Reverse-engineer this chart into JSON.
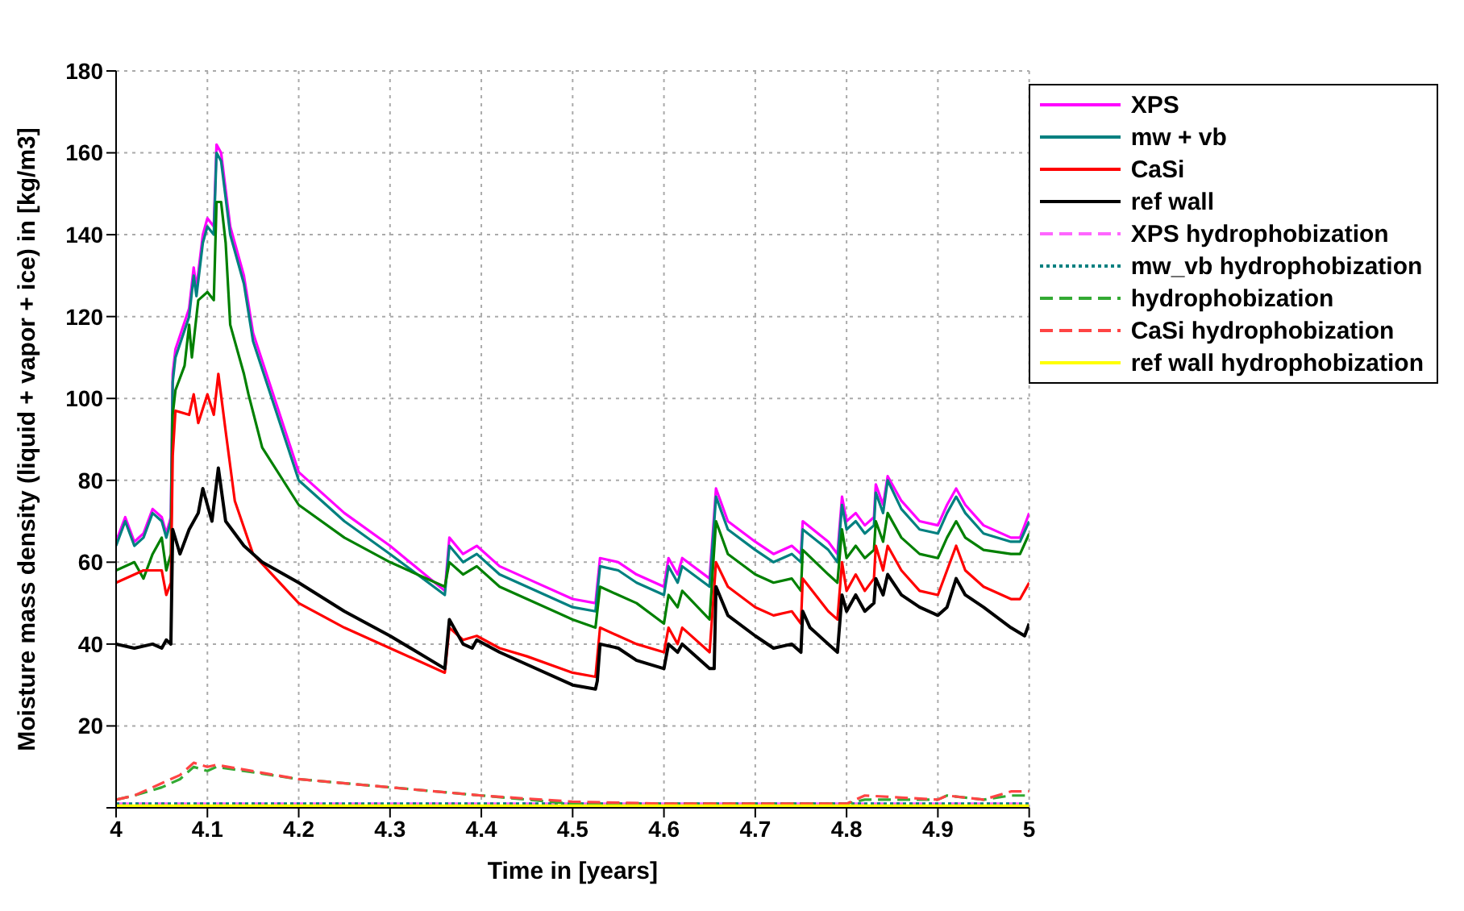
{
  "chart_data": {
    "type": "line",
    "xlabel": "Time in [years]",
    "ylabel": "Moisture mass density (liquid + vapor + ice) in [kg/m3]",
    "xlim": [
      4,
      5
    ],
    "xticks": [
      4,
      4.1,
      4.2,
      4.3,
      4.4,
      4.5,
      4.6,
      4.7,
      4.8,
      4.9,
      5
    ],
    "ylim": [
      0,
      180
    ],
    "yticks": [
      {
        "value": 0,
        "label": null
      },
      20,
      40,
      60,
      80,
      100,
      120,
      140,
      160,
      180
    ],
    "grid": true,
    "legend": "top right",
    "marker": "none",
    "series": [
      {
        "name": "XPS",
        "color": "#ff00ff",
        "line_style": "solid",
        "x": [
          4,
          4.01,
          4.02,
          4.03,
          4.04,
          4.05,
          4.055,
          4.06,
          4.062,
          4.065,
          4.08,
          4.085,
          4.088,
          4.095,
          4.1,
          4.107,
          4.11,
          4.115,
          4.125,
          4.14,
          4.15,
          4.2,
          4.25,
          4.3,
          4.36,
          4.365,
          4.38,
          4.395,
          4.42,
          4.45,
          4.5,
          4.525,
          4.53,
          4.55,
          4.57,
          4.6,
          4.605,
          4.615,
          4.62,
          4.65,
          4.657,
          4.67,
          4.7,
          4.72,
          4.74,
          4.75,
          4.752,
          4.78,
          4.79,
          4.795,
          4.8,
          4.81,
          4.82,
          4.83,
          4.832,
          4.84,
          4.845,
          4.86,
          4.88,
          4.9,
          4.91,
          4.92,
          4.93,
          4.95,
          4.98,
          4.99,
          5
        ],
        "values": [
          65,
          71,
          65,
          67,
          73,
          71,
          67,
          71,
          106,
          112,
          122,
          132,
          127,
          140,
          144,
          142,
          162,
          160,
          142,
          130,
          116,
          82,
          72,
          64,
          53,
          66,
          62,
          64,
          59,
          56,
          51,
          50,
          61,
          60,
          57,
          54,
          61,
          57,
          61,
          56,
          78,
          70,
          65,
          62,
          64,
          62,
          70,
          65,
          62,
          76,
          70,
          72,
          69,
          71,
          79,
          74,
          81,
          75,
          70,
          69,
          74,
          78,
          74,
          69,
          66,
          66,
          72
        ]
      },
      {
        "name": "mw + vb",
        "color": "#008080",
        "line_style": "solid",
        "x": [
          4,
          4.01,
          4.02,
          4.03,
          4.04,
          4.05,
          4.055,
          4.06,
          4.062,
          4.065,
          4.08,
          4.085,
          4.088,
          4.095,
          4.1,
          4.107,
          4.11,
          4.115,
          4.125,
          4.14,
          4.15,
          4.2,
          4.25,
          4.3,
          4.36,
          4.365,
          4.38,
          4.395,
          4.42,
          4.45,
          4.5,
          4.525,
          4.53,
          4.55,
          4.57,
          4.6,
          4.605,
          4.615,
          4.62,
          4.65,
          4.657,
          4.67,
          4.7,
          4.72,
          4.74,
          4.75,
          4.752,
          4.78,
          4.79,
          4.795,
          4.8,
          4.81,
          4.82,
          4.83,
          4.832,
          4.84,
          4.845,
          4.86,
          4.88,
          4.9,
          4.91,
          4.92,
          4.93,
          4.95,
          4.98,
          4.99,
          5
        ],
        "values": [
          64,
          70,
          64,
          66,
          72,
          70,
          66,
          70,
          104,
          110,
          120,
          130,
          125,
          138,
          142,
          140,
          160,
          158,
          140,
          128,
          114,
          80,
          70,
          62,
          52,
          64,
          60,
          62,
          57,
          54,
          49,
          48,
          59,
          58,
          55,
          52,
          59,
          55,
          59,
          54,
          76,
          68,
          63,
          60,
          62,
          60,
          68,
          63,
          60,
          74,
          68,
          70,
          67,
          69,
          77,
          72,
          80,
          73,
          68,
          67,
          72,
          76,
          72,
          67,
          65,
          65,
          70
        ]
      },
      {
        "color": "#008000",
        "line_style": "solid",
        "x": [
          4,
          4.02,
          4.03,
          4.04,
          4.05,
          4.055,
          4.06,
          4.062,
          4.065,
          4.075,
          4.08,
          4.083,
          4.09,
          4.1,
          4.107,
          4.11,
          4.115,
          4.12,
          4.125,
          4.14,
          4.145,
          4.16,
          4.2,
          4.25,
          4.3,
          4.36,
          4.365,
          4.38,
          4.395,
          4.42,
          4.45,
          4.5,
          4.525,
          4.53,
          4.55,
          4.57,
          4.6,
          4.605,
          4.615,
          4.62,
          4.65,
          4.657,
          4.67,
          4.7,
          4.72,
          4.74,
          4.75,
          4.752,
          4.78,
          4.79,
          4.795,
          4.8,
          4.81,
          4.82,
          4.83,
          4.832,
          4.84,
          4.845,
          4.86,
          4.88,
          4.9,
          4.91,
          4.92,
          4.93,
          4.95,
          4.98,
          4.99,
          5
        ],
        "values": [
          58,
          60,
          56,
          62,
          66,
          58,
          62,
          96,
          102,
          108,
          118,
          110,
          124,
          126,
          124,
          148,
          148,
          138,
          118,
          106,
          101,
          88,
          74,
          66,
          60,
          54,
          60,
          57,
          59,
          54,
          51,
          46,
          44,
          54,
          52,
          50,
          45,
          52,
          49,
          53,
          46,
          70,
          62,
          57,
          55,
          56,
          53,
          63,
          57,
          55,
          68,
          61,
          64,
          61,
          63,
          70,
          65,
          72,
          66,
          62,
          61,
          66,
          70,
          66,
          63,
          62,
          62,
          67
        ]
      },
      {
        "name": "CaSi",
        "color": "#ff0000",
        "line_style": "solid",
        "x": [
          4,
          4.03,
          4.05,
          4.055,
          4.06,
          4.062,
          4.065,
          4.08,
          4.085,
          4.09,
          4.1,
          4.107,
          4.112,
          4.12,
          4.13,
          4.15,
          4.2,
          4.25,
          4.3,
          4.36,
          4.365,
          4.38,
          4.395,
          4.42,
          4.45,
          4.5,
          4.525,
          4.53,
          4.55,
          4.57,
          4.6,
          4.605,
          4.615,
          4.62,
          4.65,
          4.657,
          4.67,
          4.7,
          4.72,
          4.74,
          4.75,
          4.752,
          4.78,
          4.79,
          4.795,
          4.8,
          4.81,
          4.82,
          4.83,
          4.832,
          4.84,
          4.845,
          4.86,
          4.88,
          4.9,
          4.91,
          4.92,
          4.93,
          4.95,
          4.98,
          4.99,
          5
        ],
        "values": [
          55,
          58,
          58,
          52,
          55,
          86,
          97,
          96,
          101,
          94,
          101,
          96,
          106,
          92,
          75,
          62,
          50,
          44,
          39,
          33,
          44,
          41,
          42,
          39,
          37,
          33,
          32,
          44,
          42,
          40,
          38,
          44,
          40,
          44,
          38,
          60,
          54,
          49,
          47,
          48,
          45,
          56,
          48,
          46,
          60,
          53,
          57,
          53,
          56,
          64,
          58,
          64,
          58,
          53,
          52,
          58,
          64,
          58,
          54,
          51,
          51,
          55
        ]
      },
      {
        "name": "ref wall",
        "color": "#000000",
        "line_style": "solid",
        "x": [
          4,
          4.02,
          4.04,
          4.05,
          4.055,
          4.06,
          4.062,
          4.07,
          4.08,
          4.09,
          4.095,
          4.1,
          4.105,
          4.112,
          4.12,
          4.14,
          4.16,
          4.2,
          4.25,
          4.3,
          4.36,
          4.365,
          4.38,
          4.39,
          4.395,
          4.42,
          4.45,
          4.5,
          4.525,
          4.527,
          4.53,
          4.55,
          4.57,
          4.6,
          4.605,
          4.615,
          4.62,
          4.65,
          4.655,
          4.657,
          4.67,
          4.7,
          4.72,
          4.74,
          4.75,
          4.752,
          4.76,
          4.78,
          4.79,
          4.795,
          4.8,
          4.81,
          4.82,
          4.83,
          4.832,
          4.84,
          4.845,
          4.86,
          4.88,
          4.9,
          4.91,
          4.92,
          4.93,
          4.95,
          4.98,
          4.995,
          5
        ],
        "values": [
          40,
          39,
          40,
          39,
          41,
          40,
          68,
          62,
          68,
          72,
          78,
          74,
          70,
          83,
          70,
          64,
          60,
          55,
          48,
          42,
          34,
          46,
          40,
          39,
          41,
          38,
          35,
          30,
          29,
          31,
          40,
          39,
          36,
          34,
          40,
          38,
          40,
          34,
          34,
          54,
          47,
          42,
          39,
          40,
          38,
          48,
          44,
          40,
          38,
          52,
          48,
          52,
          48,
          50,
          56,
          52,
          57,
          52,
          49,
          47,
          49,
          56,
          52,
          49,
          44,
          42,
          45
        ]
      },
      {
        "name": "XPS hydrophobization",
        "color": "#ff66ff",
        "line_style": "dashed",
        "x": [
          4,
          4.2,
          4.4,
          4.6,
          4.8,
          5
        ],
        "values": [
          1,
          1,
          1,
          1,
          1,
          1
        ]
      },
      {
        "name": "mw_vb hydrophobization",
        "color": "#008080",
        "line_style": "dotted",
        "x": [
          4,
          4.2,
          4.4,
          4.6,
          4.8,
          5
        ],
        "values": [
          1,
          1,
          1,
          1,
          1,
          1
        ]
      },
      {
        "name": "hydrophobization",
        "color": "#33aa33",
        "line_style": "dashed",
        "x": [
          4,
          4.02,
          4.05,
          4.07,
          4.085,
          4.1,
          4.11,
          4.2,
          4.3,
          4.4,
          4.5,
          4.6,
          4.8,
          4.82,
          4.9,
          4.91,
          4.95,
          4.98,
          5
        ],
        "values": [
          2,
          3,
          5,
          7,
          10,
          9,
          10,
          7,
          5,
          3,
          1,
          1,
          1,
          2,
          2,
          3,
          2,
          3,
          3
        ]
      },
      {
        "name": "CaSi hydrophobization",
        "color": "#ff4444",
        "line_style": "dashed",
        "x": [
          4,
          4.02,
          4.05,
          4.07,
          4.085,
          4.1,
          4.11,
          4.2,
          4.3,
          4.4,
          4.5,
          4.6,
          4.8,
          4.82,
          4.9,
          4.91,
          4.95,
          4.98,
          5
        ],
        "values": [
          2,
          3,
          6,
          8,
          11,
          10,
          10.5,
          7,
          5,
          3,
          1.5,
          1,
          1,
          3,
          2,
          3,
          2,
          4,
          4
        ]
      },
      {
        "name": "ref wall hydrophobization",
        "color": "#ffff00",
        "line_style": "solid",
        "x": [
          4,
          4.2,
          4.4,
          4.6,
          4.8,
          5
        ],
        "values": [
          0.5,
          0.5,
          0.5,
          0.5,
          0.5,
          0.5
        ]
      }
    ]
  }
}
